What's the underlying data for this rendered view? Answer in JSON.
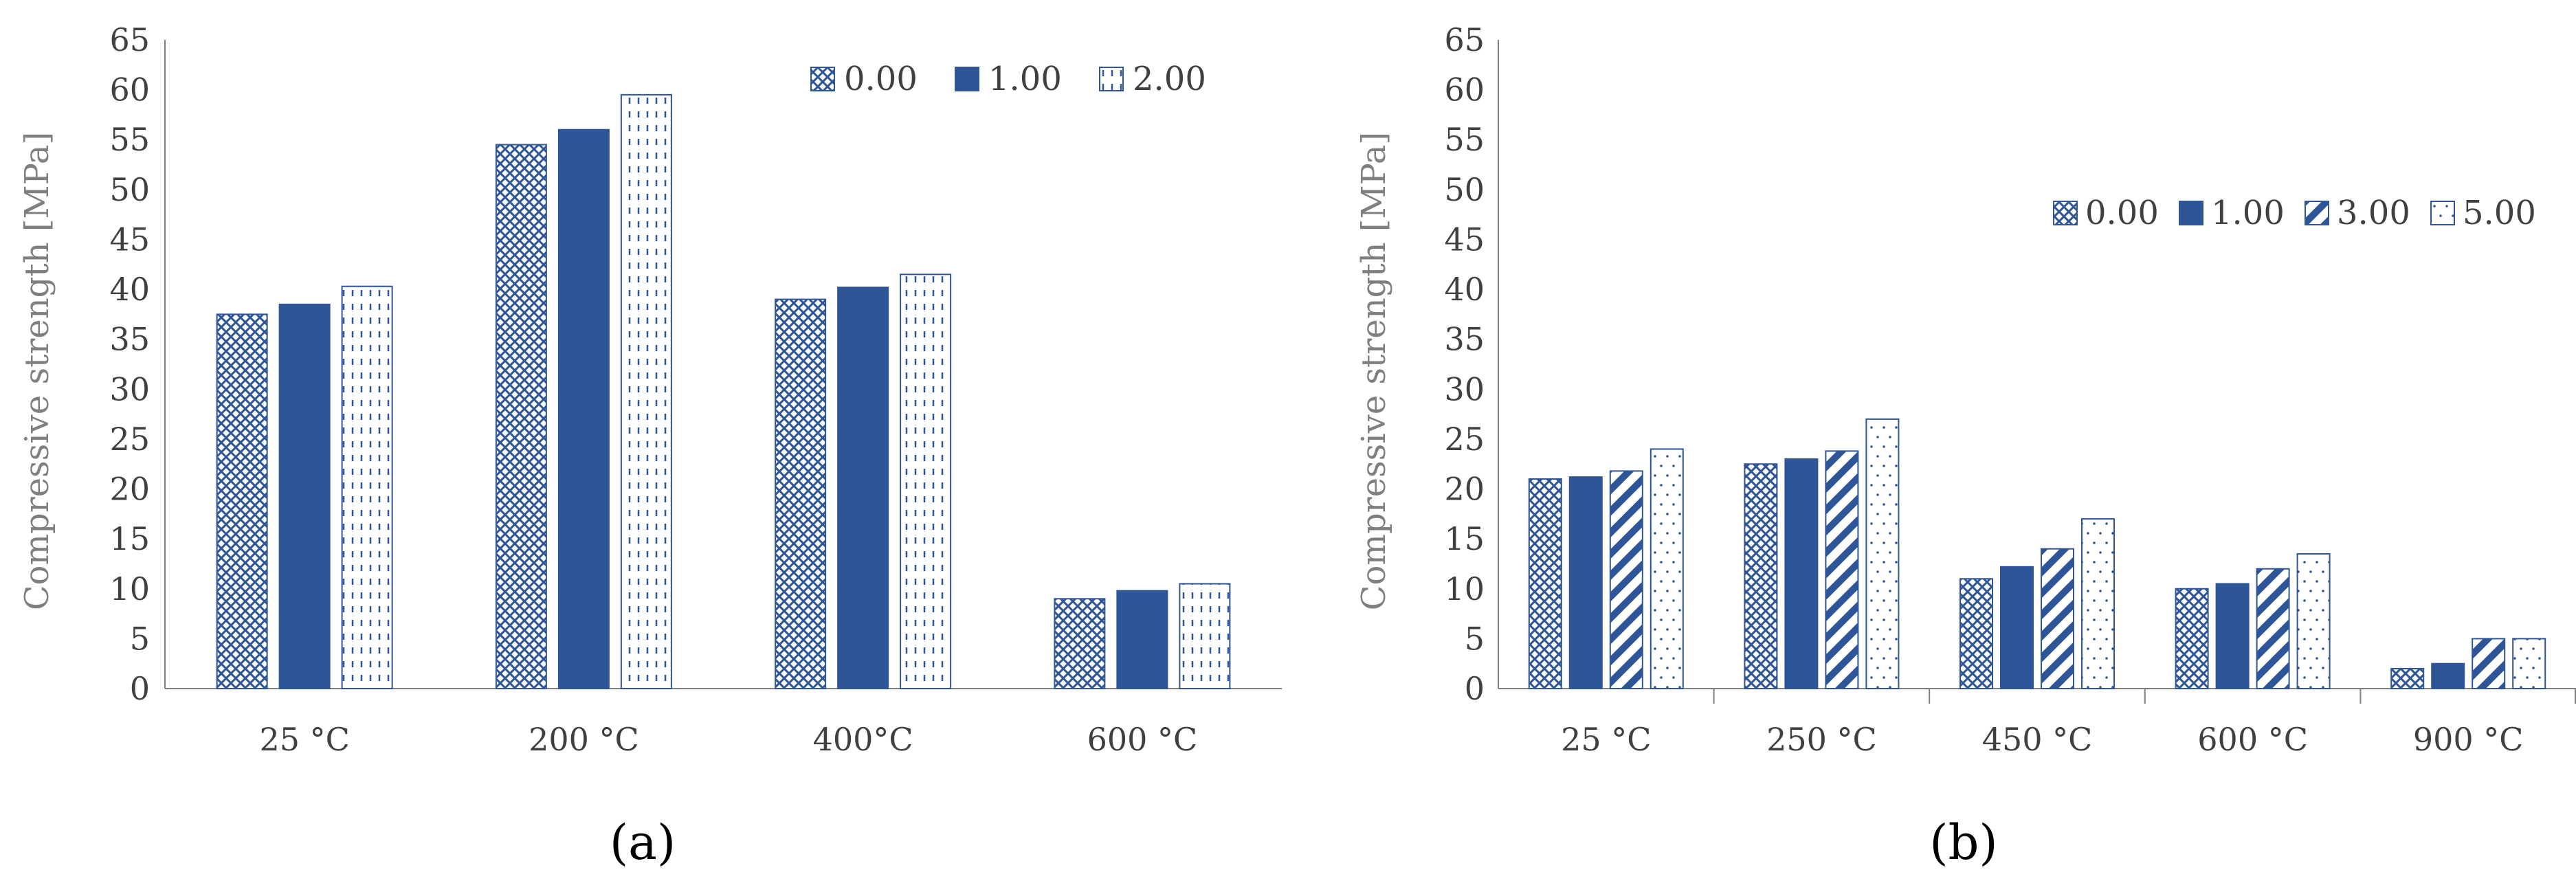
{
  "colors": {
    "bar": "#2e5597",
    "axis": "#7f7f7f",
    "text": "#404040",
    "background": "#ffffff"
  },
  "panel_labels": {
    "a": "(a)",
    "b": "(b)"
  },
  "chart_data": [
    {
      "type": "bar",
      "panel": "a",
      "ylabel": "Compressive strength [MPa]",
      "xlabel": "",
      "ylim": [
        0,
        65
      ],
      "ytick_step": 5,
      "categories": [
        "25 °C",
        "200 °C",
        "400°C",
        "600 °C"
      ],
      "legend_position": "top-right",
      "series": [
        {
          "name": "0.00",
          "pattern": "crosshatch",
          "values": [
            37.5,
            54.5,
            39,
            9
          ]
        },
        {
          "name": "1.00",
          "pattern": "solid",
          "values": [
            38.5,
            56,
            40.2,
            9.8
          ]
        },
        {
          "name": "2.00",
          "pattern": "dashes",
          "values": [
            40.3,
            59.5,
            41.5,
            10.5
          ]
        }
      ]
    },
    {
      "type": "bar",
      "panel": "b",
      "ylabel": "Compressive strength [MPa]",
      "xlabel": "",
      "ylim": [
        0,
        65
      ],
      "ytick_step": 5,
      "categories": [
        "25 °C",
        "250 °C",
        "450 °C",
        "600 °C",
        "900 °C"
      ],
      "legend_position": "middle-right",
      "series": [
        {
          "name": "0.00",
          "pattern": "crosshatch",
          "values": [
            21,
            22.5,
            11,
            10,
            2
          ]
        },
        {
          "name": "1.00",
          "pattern": "solid",
          "values": [
            21.2,
            23,
            12.2,
            10.5,
            2.5
          ]
        },
        {
          "name": "3.00",
          "pattern": "diagonal",
          "values": [
            21.8,
            23.8,
            14,
            12,
            5
          ]
        },
        {
          "name": "5.00",
          "pattern": "dots",
          "values": [
            24,
            27,
            17,
            13.5,
            5
          ]
        }
      ]
    }
  ]
}
